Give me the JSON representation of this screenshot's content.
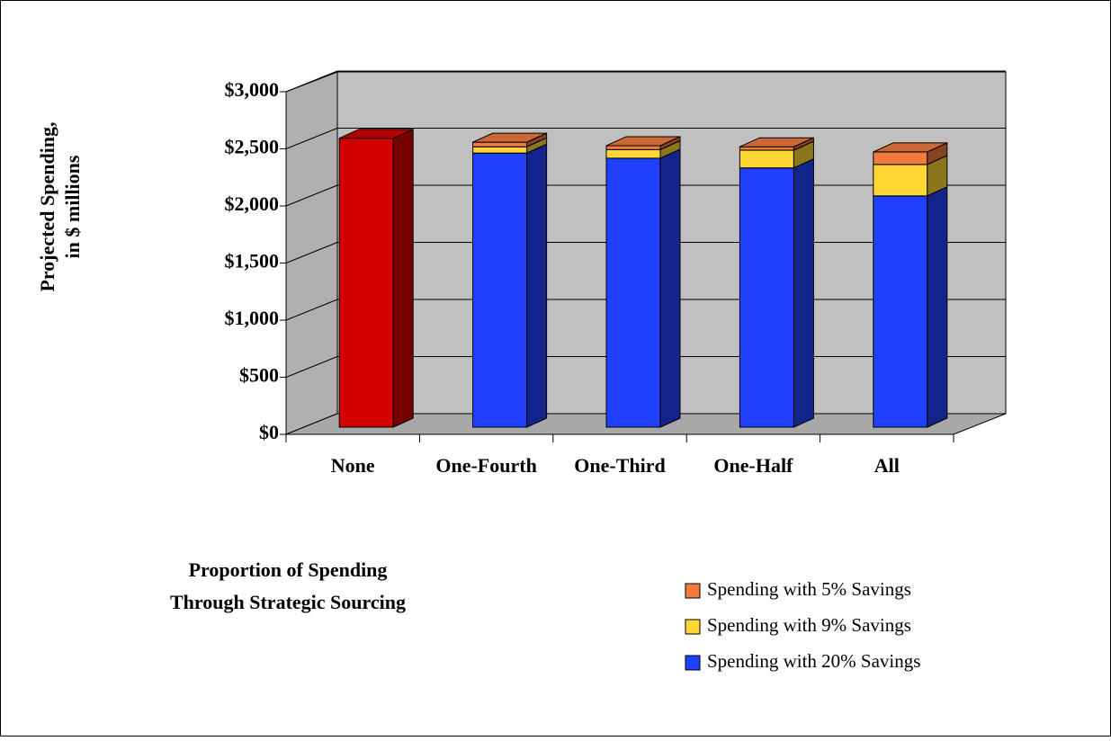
{
  "chart_data": {
    "type": "bar3d_stacked",
    "ylabel": [
      "Projected Spending,",
      "in $ millions"
    ],
    "xlabel": [
      "Proportion of Spending",
      "Through Strategic Sourcing"
    ],
    "categories": [
      "None",
      "One-Fourth",
      "One-Third",
      "One-Half",
      "All"
    ],
    "series": [
      {
        "name": "Spending with 20% Savings",
        "color": "#2040ff",
        "values": [
          null,
          2400,
          2355,
          2270,
          2025
        ]
      },
      {
        "name": "Spending with 9% Savings",
        "color": "#ffd633",
        "values": [
          null,
          55,
          75,
          155,
          275
        ]
      },
      {
        "name": "Spending with 5% Savings",
        "color": "#f07a40",
        "values": [
          null,
          40,
          35,
          30,
          110
        ]
      },
      {
        "color": "#d40000",
        "values": [
          2530,
          null,
          null,
          null,
          null
        ]
      }
    ],
    "ylim": [
      0,
      3000
    ],
    "yticks": [
      {
        "value": 0,
        "label": "$0"
      },
      {
        "value": 500,
        "label": "$500"
      },
      {
        "value": 1000,
        "label": "$1,000"
      },
      {
        "value": 1500,
        "label": "$1,500"
      },
      {
        "value": 2000,
        "label": "$2,000"
      },
      {
        "value": 2500,
        "label": "$2,500"
      },
      {
        "value": 3000,
        "label": "$3,000"
      }
    ],
    "grid": true
  }
}
